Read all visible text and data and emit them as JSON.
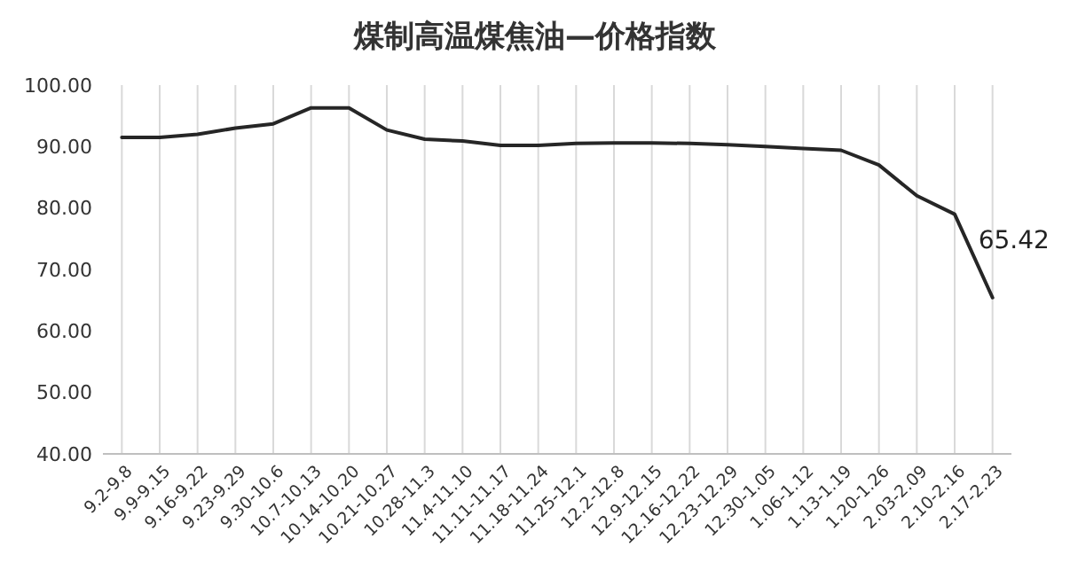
{
  "chart_data": {
    "type": "line",
    "title": "煤制高温煤焦油—价格指数",
    "categories": [
      "9.2-9.8",
      "9.9-9.15",
      "9.16-9.22",
      "9.23-9.29",
      "9.30-10.6",
      "10.7-10.13",
      "10.14-10.20",
      "10.21-10.27",
      "10.28-11.3",
      "11.4-11.10",
      "11.11-11.17",
      "11.18-11.24",
      "11.25-12.1",
      "12.2-12.8",
      "12.9-12.15",
      "12.16-12.22",
      "12.23-12.29",
      "12.30-1.05",
      "1.06-1.12",
      "1.13-1.19",
      "1.20-1.26",
      "2.03-2.09",
      "2.10-2.16",
      "2.17-2.23"
    ],
    "series": [
      {
        "color": "#262626",
        "values": [
          91.5,
          91.5,
          92,
          93,
          93.7,
          96.3,
          96.3,
          92.7,
          91.2,
          90.9,
          90.2,
          90.2,
          90.5,
          90.6,
          90.6,
          90.5,
          90.3,
          90,
          89.7,
          89.4,
          87,
          82,
          79,
          65.42
        ],
        "value_labels": [
          null,
          null,
          null,
          null,
          null,
          null,
          null,
          null,
          null,
          null,
          null,
          null,
          null,
          null,
          null,
          null,
          null,
          null,
          null,
          null,
          null,
          null,
          null,
          "65.42"
        ]
      }
    ],
    "ylim": [
      40,
      100
    ],
    "yticks": [
      {
        "value": 40,
        "label": "40.00"
      },
      {
        "value": 50,
        "label": "50.00"
      },
      {
        "value": 60,
        "label": "60.00"
      },
      {
        "value": 70,
        "label": "70.00"
      },
      {
        "value": 80,
        "label": "80.00"
      },
      {
        "value": 90,
        "label": "90.00"
      },
      {
        "value": 100,
        "label": "100.00"
      }
    ],
    "grid": "x",
    "marker": "none",
    "line_style": "solid"
  }
}
